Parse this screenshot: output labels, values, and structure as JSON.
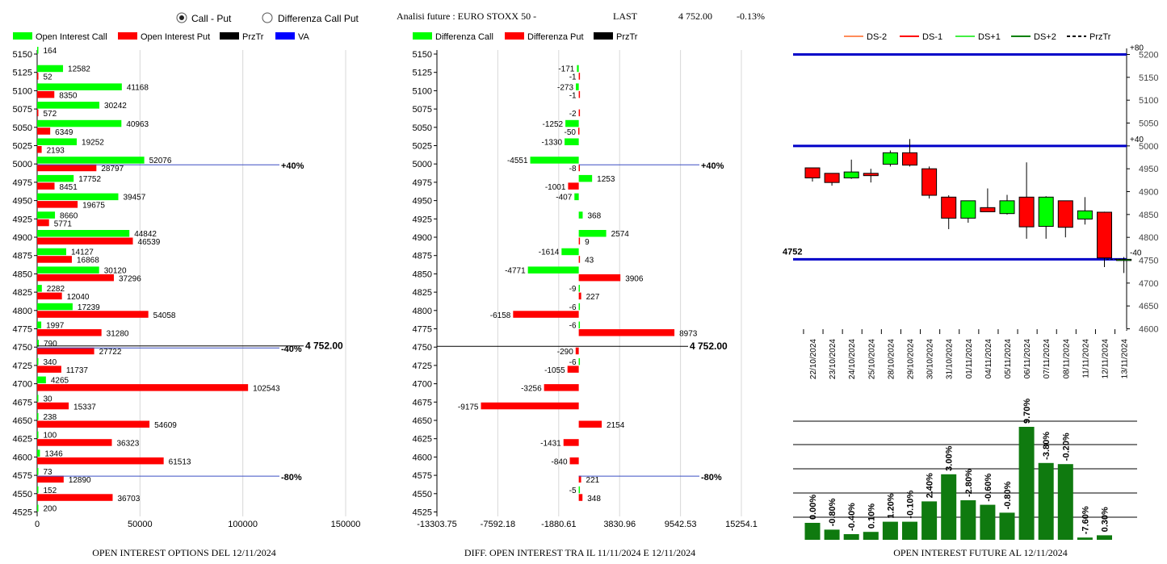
{
  "header": {
    "radio_call_put": "Call - Put",
    "radio_diff": "Differenza Call Put",
    "selected": "call_put",
    "analysis_title": "Analisi future : EURO STOXX 50 -",
    "last_label": "LAST",
    "last_value": "4 752.00",
    "last_change": "-0.13%"
  },
  "colors": {
    "green": "#00ff00",
    "red": "#ff0000",
    "blue": "#0000c8",
    "dark_green": "#007a00",
    "black": "#000000"
  },
  "chart_data": [
    {
      "type": "bar",
      "orientation": "horizontal",
      "title": "OPEN INTEREST OPTIONS DEL 12/11/2024",
      "legend": [
        "Open Interest Call",
        "Open Interest Put",
        "PrzTr",
        "VA"
      ],
      "categories": [
        "5150",
        "5125",
        "5100",
        "5075",
        "5050",
        "5025",
        "5000",
        "4975",
        "4950",
        "4925",
        "4900",
        "4875",
        "4850",
        "4825",
        "4800",
        "4775",
        "4750",
        "4725",
        "4700",
        "4675",
        "4650",
        "4625",
        "4600",
        "4575",
        "4550",
        "4525"
      ],
      "series": [
        {
          "name": "Open Interest Call",
          "values": [
            164,
            12582,
            41168,
            30242,
            40963,
            19252,
            52076,
            17752,
            39457,
            8660,
            44842,
            14127,
            30120,
            2282,
            17239,
            1997,
            790,
            340,
            4265,
            30,
            238,
            100,
            1346,
            73,
            152,
            200
          ]
        },
        {
          "name": "Open Interest Put",
          "values": [
            null,
            52,
            8350,
            572,
            6349,
            2193,
            28797,
            8451,
            19675,
            5771,
            46539,
            16868,
            37296,
            12040,
            54058,
            31280,
            27722,
            11737,
            102543,
            15337,
            54609,
            36323,
            61513,
            12890,
            36703,
            null
          ]
        }
      ],
      "xlim": [
        0,
        150000
      ],
      "xticks": [
        "0",
        "50000",
        "100000",
        "150000"
      ],
      "ref_lines": [
        {
          "strike": "5000",
          "label": "+40%"
        },
        {
          "strike": "4750",
          "label": "-40%"
        },
        {
          "strike": "4575",
          "label": "-80%"
        }
      ],
      "last_label": "4 752.00"
    },
    {
      "type": "bar",
      "orientation": "horizontal",
      "title": "DIFF. OPEN INTEREST TRA IL 11/11/2024 E 12/11/2024",
      "legend": [
        "Differenza Call",
        "Differenza Put",
        "PrzTr"
      ],
      "categories": [
        "5150",
        "5125",
        "5100",
        "5075",
        "5050",
        "5025",
        "5000",
        "4975",
        "4950",
        "4925",
        "4900",
        "4875",
        "4850",
        "4825",
        "4800",
        "4775",
        "4750",
        "4725",
        "4700",
        "4675",
        "4650",
        "4625",
        "4600",
        "4575",
        "4550",
        "4525"
      ],
      "series": [
        {
          "name": "Differenza Call",
          "values": [
            null,
            -171,
            -273,
            null,
            -1252,
            -1330,
            -4551,
            1253,
            -407,
            368,
            2574,
            -1614,
            -4771,
            -9,
            -6,
            -6,
            null,
            -6,
            null,
            null,
            null,
            null,
            null,
            null,
            -5,
            null
          ]
        },
        {
          "name": "Differenza Put",
          "values": [
            null,
            -1,
            -1,
            -2,
            -50,
            null,
            -8,
            -1001,
            null,
            null,
            9,
            43,
            3906,
            227,
            -6158,
            8973,
            -290,
            -1055,
            -3256,
            -9175,
            2154,
            -1431,
            -840,
            221,
            348,
            null
          ]
        }
      ],
      "xlim": [
        -13303.75,
        15254.1
      ],
      "xticks": [
        "-13303.75",
        "-7592.18",
        "-1880.61",
        "3830.96",
        "9542.53",
        "15254.1"
      ],
      "ref_lines": [
        {
          "strike": "5000",
          "label": "+40%"
        },
        {
          "strike": "4575",
          "label": "-80%"
        }
      ],
      "last_label": "4 752.00"
    },
    {
      "type": "candlestick",
      "legend": [
        "DS-2",
        "DS-1",
        "DS+1",
        "DS+2",
        "PrzTr"
      ],
      "x": [
        "22/10/2024",
        "23/10/2024",
        "24/10/2024",
        "25/10/2024",
        "28/10/2024",
        "29/10/2024",
        "30/10/2024",
        "31/10/2024",
        "01/11/2024",
        "04/11/2024",
        "05/11/2024",
        "06/11/2024",
        "07/11/2024",
        "08/11/2024",
        "11/11/2024",
        "12/11/2024",
        "13/11/2024"
      ],
      "ohlc": [
        [
          4952,
          4952,
          4922,
          4930
        ],
        [
          4940,
          4940,
          4913,
          4920
        ],
        [
          4930,
          4970,
          4928,
          4943
        ],
        [
          4940,
          4950,
          4920,
          4935
        ],
        [
          4960,
          4990,
          4955,
          4985
        ],
        [
          4985,
          5015,
          4955,
          4958
        ],
        [
          4950,
          4955,
          4885,
          4892
        ],
        [
          4888,
          4892,
          4818,
          4842
        ],
        [
          4842,
          4878,
          4832,
          4880
        ],
        [
          4865,
          4907,
          4858,
          4856
        ],
        [
          4852,
          4893,
          4850,
          4880
        ],
        [
          4888,
          4964,
          4797,
          4823
        ],
        [
          4824,
          4890,
          4797,
          4888
        ],
        [
          4880,
          4880,
          4800,
          4822
        ],
        [
          4840,
          4888,
          4828,
          4858
        ],
        [
          4855,
          4856,
          4735,
          4755
        ],
        [
          4750,
          4757,
          4722,
          4752
        ]
      ],
      "candle_colors": [
        "red",
        "red",
        "green",
        "red",
        "green",
        "red",
        "red",
        "red",
        "green",
        "red",
        "green",
        "red",
        "green",
        "red",
        "green",
        "red",
        "green"
      ],
      "ylim": [
        4600,
        5200
      ],
      "yticks": [
        "4600",
        "4650",
        "4700",
        "4750",
        "4800",
        "4850",
        "4900",
        "4950",
        "5000",
        "5050",
        "5100",
        "5150",
        "5200"
      ],
      "levels": [
        {
          "value": 5200,
          "label": "+80"
        },
        {
          "value": 5000,
          "label": "+40"
        },
        {
          "value": 4752,
          "label": "-40"
        }
      ],
      "last_label": "4752"
    },
    {
      "type": "bar",
      "title": "OPEN INTEREST FUTURE AL 12/11/2024",
      "categories": [
        "22/10/2024",
        "23/10/2024",
        "24/10/2024",
        "25/10/2024",
        "28/10/2024",
        "29/10/2024",
        "30/10/2024",
        "31/10/2024",
        "01/11/2024",
        "04/11/2024",
        "05/11/2024",
        "06/11/2024",
        "07/11/2024",
        "08/11/2024",
        "11/11/2024",
        "12/11/2024",
        "13/11/2024"
      ],
      "values": [
        0.0,
        -0.8,
        -0.4,
        0.1,
        1.2,
        -0.1,
        2.4,
        3.0,
        -2.8,
        -0.6,
        -0.8,
        9.7,
        -3.8,
        -0.2,
        -7.6,
        0.3,
        null
      ],
      "labels": [
        "0.00%",
        "-0.80%",
        "-0.40%",
        "0.10%",
        "1.20%",
        "-0.10%",
        "2.40%",
        "3.00%",
        "-2.80%",
        "-0.60%",
        "-0.80%",
        "9.70%",
        "-3.80%",
        "-0.20%",
        "-7.60%",
        "0.30%",
        ""
      ],
      "relative_heights": [
        0.15,
        0.09,
        0.05,
        0.07,
        0.16,
        0.16,
        0.34,
        0.58,
        0.35,
        0.31,
        0.24,
        1.0,
        0.68,
        0.67,
        0.02,
        0.04,
        0
      ]
    }
  ]
}
